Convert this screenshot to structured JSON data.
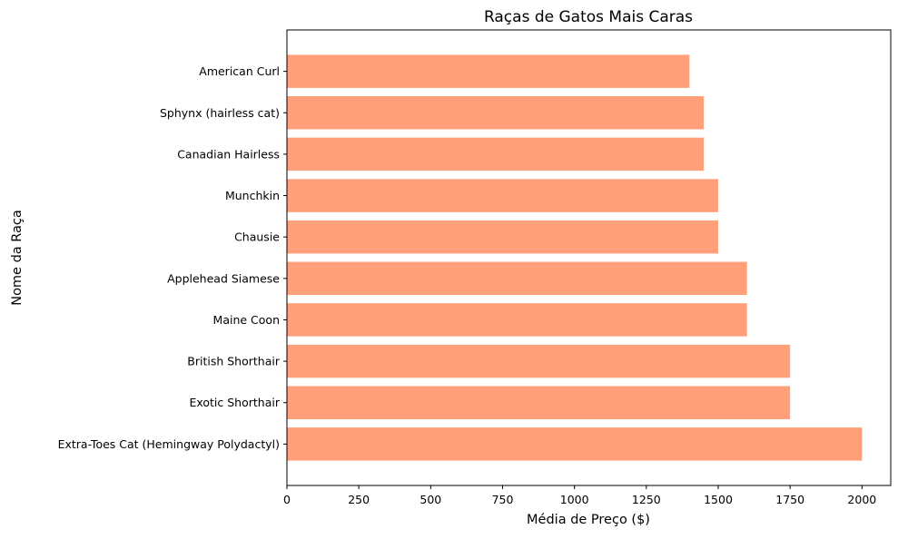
{
  "chart_data": {
    "type": "bar",
    "orientation": "horizontal",
    "title": "Raças de Gatos Mais Caras",
    "xlabel": "Média de Preço ($)",
    "ylabel": "Nome da Raça",
    "categories": [
      "Extra-Toes Cat (Hemingway Polydactyl)",
      "Exotic Shorthair",
      "British Shorthair",
      "Maine Coon",
      "Applehead Siamese",
      "Chausie",
      "Munchkin",
      "Canadian Hairless",
      "Sphynx (hairless cat)",
      "American Curl"
    ],
    "values": [
      2000,
      1750,
      1750,
      1600,
      1600,
      1500,
      1500,
      1450,
      1450,
      1400
    ],
    "xlim": [
      0,
      2100
    ],
    "xticks": [
      0,
      250,
      500,
      750,
      1000,
      1250,
      1500,
      1750,
      2000
    ],
    "bar_color": "#ffa07a",
    "grid": false,
    "legend": "none"
  }
}
